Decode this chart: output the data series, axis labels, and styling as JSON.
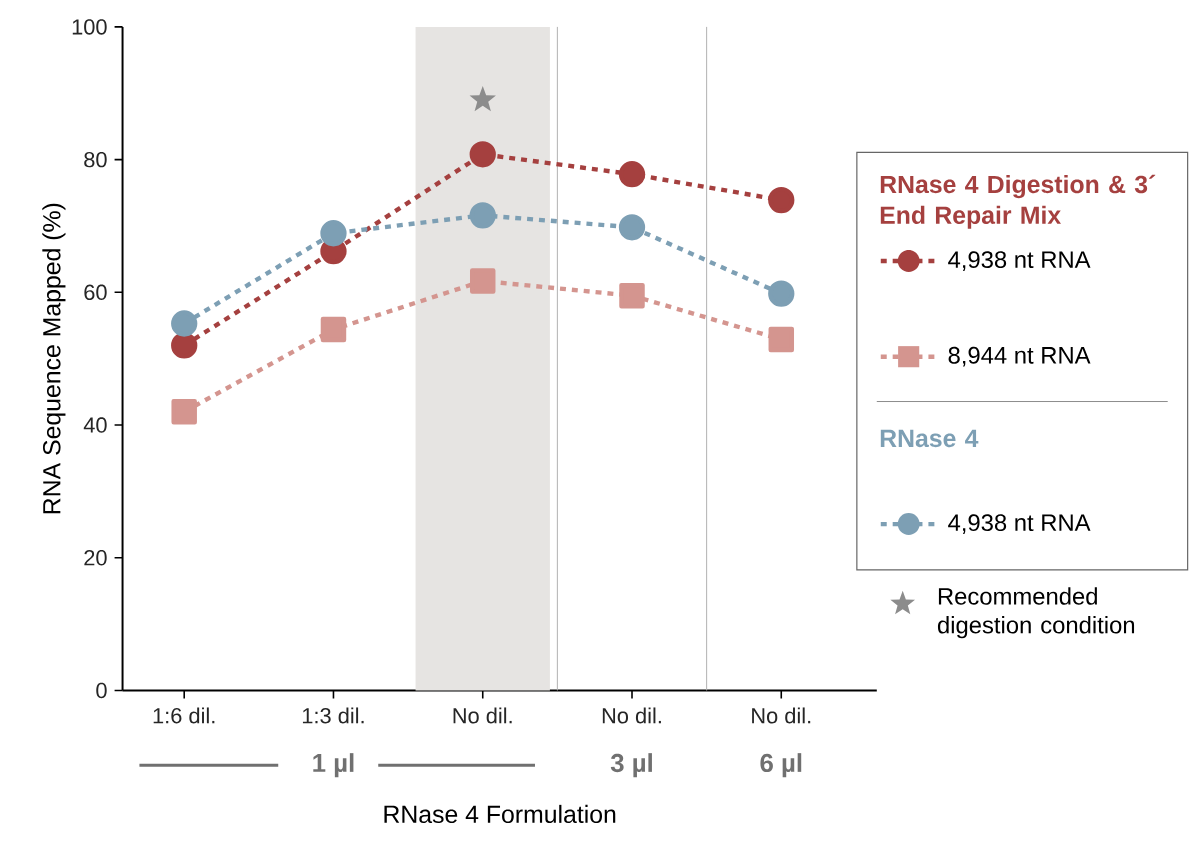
{
  "chart_data": {
    "type": "line",
    "xlabel": "RNase 4 Formulation",
    "ylabel": "RNA Sequence Mapped  (%)",
    "categories": [
      "1:6 dil.",
      "1:3 dil.",
      "No dil.",
      "No dil.",
      "No dil."
    ],
    "series": [
      {
        "name": "4,938 nt RNA",
        "color": "#a5403f",
        "marker": "circle",
        "values": [
          52.0,
          66.2,
          80.8,
          77.8,
          73.9
        ]
      },
      {
        "name": "8,944 nt RNA",
        "color": "#d4958f",
        "marker": "square",
        "values": [
          42.0,
          54.4,
          61.7,
          59.5,
          52.9
        ]
      },
      {
        "name": "4,938 nt RNA",
        "color": "#7d9fb4",
        "marker": "circle",
        "values": [
          55.3,
          68.9,
          71.6,
          69.8,
          59.8
        ]
      },
      {
        "name": "Recommended digestion condition",
        "type": "scatter",
        "color": "#8c8c8c",
        "marker": "star",
        "x": [
          "No dil."
        ],
        "values": [
          89
        ]
      }
    ],
    "ylim": [
      0,
      100
    ],
    "yticks": [
      0,
      20,
      40,
      60,
      80,
      100
    ],
    "grid": false,
    "legend": "right",
    "line_style": "dashed",
    "bands": [
      {
        "axis": "x",
        "from": "No dil.",
        "to": "No dil.",
        "color": "#e6e4e2"
      }
    ],
    "annotations": [
      "1 µl",
      "3 µl",
      "6 µl",
      "RNase 4 Digestion & 3´ End Repair Mix",
      "RNase 4"
    ]
  }
}
